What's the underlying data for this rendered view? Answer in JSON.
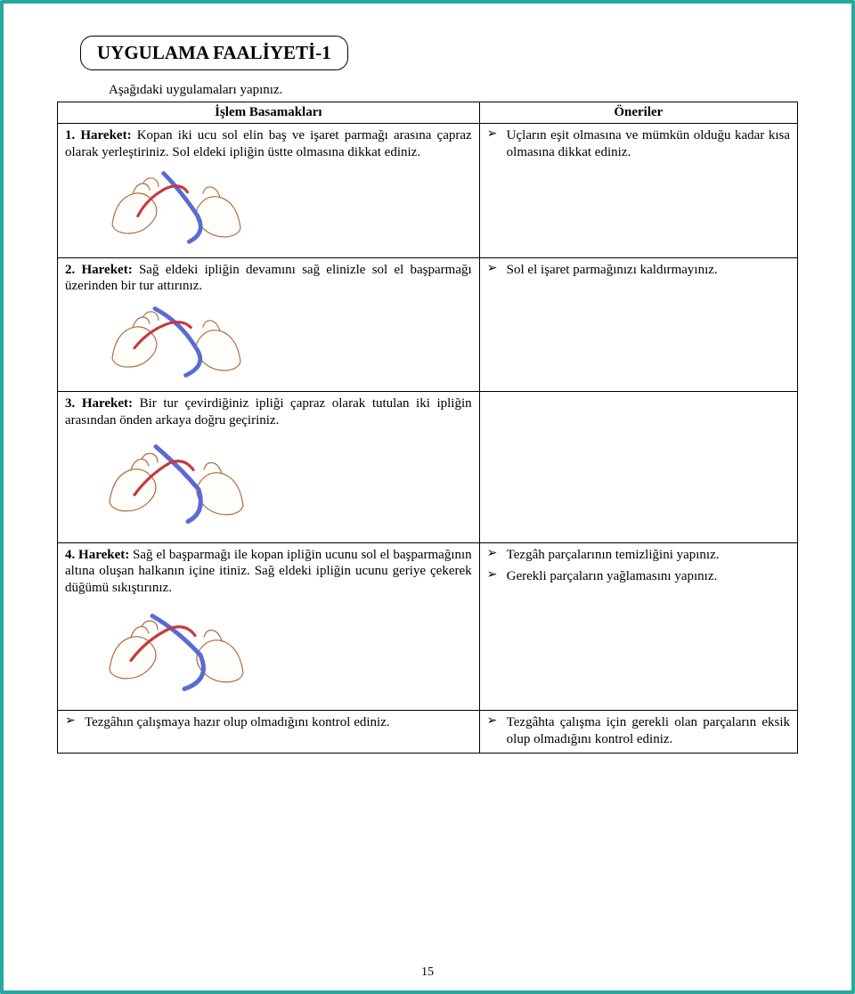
{
  "accent_border": "#2aa8a0",
  "title": "UYGULAMA FAALİYETİ-1",
  "intro": "Aşağıdaki uygulamaları yapınız.",
  "columns": {
    "left": "İşlem Basamakları",
    "right": "Öneriler"
  },
  "arrow_glyph": "➢",
  "page_number": "15",
  "rows": [
    {
      "step_label": "1. Hareket:",
      "step_text": " Kopan iki ucu sol elin baş ve işaret parmağı arasına çapraz olarak yerleştiriniz. Sol eldeki ipliğin üstte olmasına dikkat ediniz.",
      "has_image": true,
      "right_items": [
        "Uçların eşit olmasına ve mümkün olduğu kadar kısa olmasına dikkat ediniz."
      ],
      "tall": false
    },
    {
      "step_label": "2. Hareket:",
      "step_text": " Sağ eldeki ipliğin devamını sağ elinizle sol el başparmağı üzerinden bir tur attırınız.",
      "has_image": true,
      "right_items": [
        "Sol el işaret parmağınızı kaldırmayınız."
      ],
      "tall": false
    },
    {
      "step_label": "3. Hareket:",
      "step_text": " Bir tur çevirdiğiniz ipliği çapraz olarak tutulan iki ipliğin arasından önden arkaya doğru geçiriniz.",
      "has_image": true,
      "right_items": [],
      "tall": true
    },
    {
      "step_label": "4. Hareket:",
      "step_text": " Sağ el başparmağı ile kopan ipliğin ucunu sol el başparmağının altına oluşan halkanın içine itiniz. Sağ eldeki ipliğin ucunu geriye çekerek düğümü sıkıştırınız.",
      "has_image": true,
      "right_items": [
        "Tezgâh parçalarının temizliğini yapınız.",
        "Gerekli parçaların yağlamasını yapınız."
      ],
      "tall": true
    },
    {
      "left_bullets": [
        "Tezgâhın çalışmaya hazır olup olmadığını kontrol ediniz."
      ],
      "has_image": false,
      "right_items": [
        "Tezgâhta çalışma için gerekli olan parçaların eksik olup olmadığını kontrol ediniz."
      ],
      "tall": false
    }
  ]
}
